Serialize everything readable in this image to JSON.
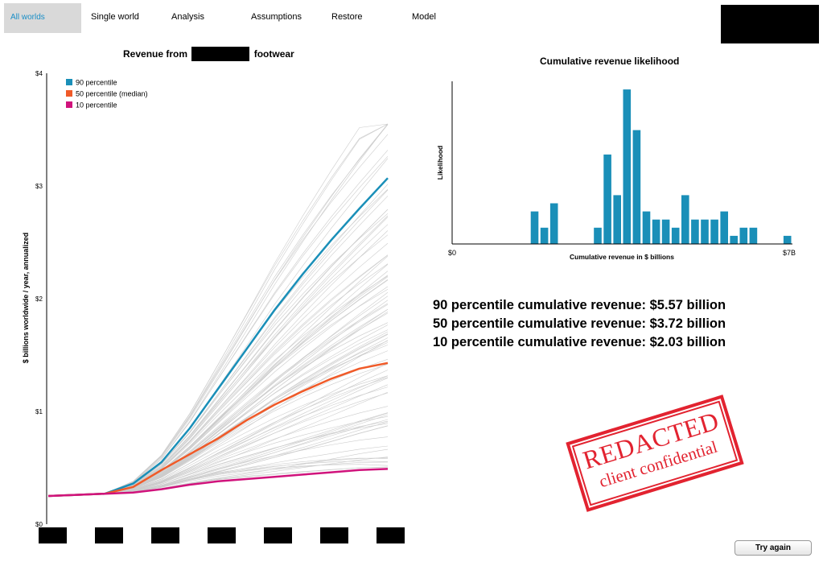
{
  "nav": {
    "tabs": [
      {
        "label": "All worlds",
        "active": true
      },
      {
        "label": "Single world",
        "active": false
      },
      {
        "label": "Analysis",
        "active": false
      },
      {
        "label": "Assumptions",
        "active": false
      },
      {
        "label": "Restore",
        "active": false
      },
      {
        "label": "Model",
        "active": false
      }
    ]
  },
  "colors": {
    "p90": "#1a8fb8",
    "p50": "#f05a28",
    "p10": "#d0137c",
    "bars": "#1a8fb8",
    "gray_lines": "#cccccc",
    "stamp": "#e22330"
  },
  "chart_data": [
    {
      "type": "line",
      "title": "Revenue from [redacted] footwear",
      "title_prefix": "Revenue from",
      "title_suffix": "footwear",
      "ylabel": "$ billions worldwide / year, annualized",
      "xlabel": "",
      "ylim": [
        0,
        4
      ],
      "y_tick_labels": [
        "$0",
        "$1",
        "$2",
        "$3",
        "$4"
      ],
      "x_tick_labels_redacted": 7,
      "x": [
        0,
        0.5,
        1,
        1.5,
        2,
        2.5,
        3,
        3.5,
        4,
        4.5,
        5,
        5.5,
        6
      ],
      "series": [
        {
          "name": "90 percentile",
          "values": [
            0.25,
            0.26,
            0.27,
            0.36,
            0.55,
            0.85,
            1.2,
            1.55,
            1.9,
            2.22,
            2.52,
            2.8,
            3.07
          ]
        },
        {
          "name": "50 percentile (median)",
          "values": [
            0.25,
            0.26,
            0.27,
            0.33,
            0.48,
            0.62,
            0.76,
            0.92,
            1.06,
            1.18,
            1.29,
            1.38,
            1.43
          ]
        },
        {
          "name": "10 percentile",
          "values": [
            0.25,
            0.26,
            0.27,
            0.28,
            0.31,
            0.35,
            0.38,
            0.4,
            0.42,
            0.44,
            0.46,
            0.48,
            0.49
          ]
        }
      ],
      "legend_placement": "top-left",
      "grid": false
    },
    {
      "type": "bar",
      "title": "Cumulative revenue likelihood",
      "xlabel": "Cumulative revenue in $ billions",
      "ylabel": "Likelihood",
      "x_tick_labels": [
        "$0",
        "$7B"
      ],
      "xlim": [
        0,
        7
      ],
      "bin_width": 0.2,
      "bin_starts": [
        1.6,
        1.8,
        2.0,
        2.9,
        3.1,
        3.3,
        3.5,
        3.7,
        3.9,
        4.1,
        4.3,
        4.5,
        4.7,
        4.9,
        5.1,
        5.3,
        5.5,
        5.7,
        5.9,
        6.1,
        6.3,
        6.8
      ],
      "values": [
        4,
        2,
        5,
        2,
        11,
        6,
        19,
        14,
        4,
        3,
        3,
        2,
        6,
        3,
        3,
        3,
        4,
        1,
        2,
        2,
        0,
        1
      ],
      "ylim": [
        0,
        20
      ],
      "grid": false
    }
  ],
  "stats": {
    "p90": "90 percentile cumulative revenue: $5.57 billion",
    "p50": "50 percentile cumulative revenue: $3.72 billion",
    "p10": "10 percentile cumulative revenue: $2.03 billion"
  },
  "stamp": {
    "line1": "REDACTED",
    "line2": "client confidential"
  },
  "try_again_label": "Try again"
}
